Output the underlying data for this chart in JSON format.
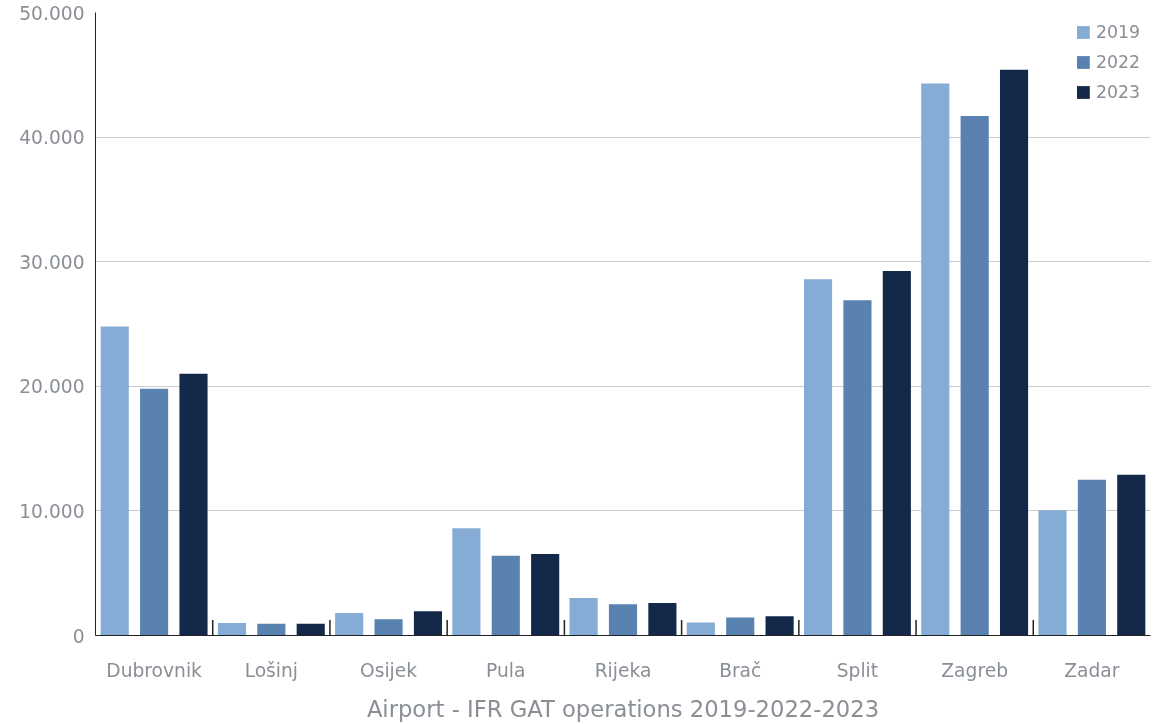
{
  "chart_data": {
    "type": "bar",
    "xlabel": "Airport - IFR GAT operations 2019-2022-2023",
    "categories": [
      "Dubrovnik",
      "Lošinj",
      "Osijek",
      "Pula",
      "Rijeka",
      "Brač",
      "Split",
      "Zagreb",
      "Zadar"
    ],
    "series": [
      {
        "name": "2019",
        "color": "#85acd5",
        "values": [
          24800,
          1000,
          1800,
          8600,
          3000,
          1050,
          28600,
          44300,
          10050
        ]
      },
      {
        "name": "2022",
        "color": "#5a82b0",
        "values": [
          19800,
          950,
          1300,
          6400,
          2500,
          1450,
          26900,
          41700,
          12500
        ]
      },
      {
        "name": "2023",
        "color": "#14284a",
        "values": [
          21000,
          950,
          1950,
          6550,
          2600,
          1550,
          29250,
          45400,
          12900
        ]
      }
    ],
    "ylim": [
      0,
      50000
    ],
    "yticks": [
      {
        "value": 0,
        "label": "0"
      },
      {
        "value": 10000,
        "label": "10.000"
      },
      {
        "value": 20000,
        "label": "20.000"
      },
      {
        "value": 30000,
        "label": "30.000"
      },
      {
        "value": 40000,
        "label": "40.000"
      },
      {
        "value": 50000,
        "label": "50.000"
      }
    ],
    "grid": "y",
    "legend": "top right"
  }
}
